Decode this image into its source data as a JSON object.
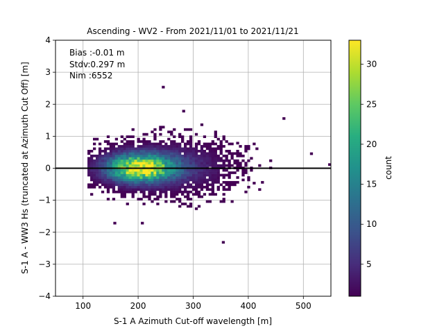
{
  "chart_data": {
    "type": "heatmap",
    "title": "Ascending - WV2 - From 2021/11/01 to 2021/11/21",
    "xlabel": "S-1 A Azimuth Cut-off wavelength [m]",
    "ylabel": "S-1 A - WW3 Hs (truncated at Azimuth Cut Off) [m]",
    "xlim": [
      50,
      550
    ],
    "ylim": [
      -4,
      4
    ],
    "xticks": [
      100,
      200,
      300,
      400,
      500
    ],
    "yticks": [
      -4,
      -3,
      -2,
      -1,
      0,
      1,
      2,
      3,
      4
    ],
    "grid": true,
    "reference_line_y": 0,
    "annotations": [
      "Bias :-0.01 m",
      "Stdv:0.297 m",
      "Nim :6552"
    ],
    "colorbar": {
      "label": "count",
      "colormap": "viridis",
      "range": [
        1,
        33
      ],
      "ticks": [
        5,
        10,
        15,
        20,
        25,
        30
      ]
    },
    "density_clusters": [
      {
        "x_center": 200,
        "y_center": -0.02,
        "x_spread": 42,
        "y_spread": 0.3,
        "peak_count": 33
      },
      {
        "x_center": 275,
        "y_center": 0.0,
        "x_spread": 55,
        "y_spread": 0.45,
        "peak_count": 5
      }
    ],
    "outliers": [
      {
        "x": 243,
        "y": 2.5
      },
      {
        "x": 280,
        "y": 1.75
      },
      {
        "x": 352,
        "y": -2.35
      },
      {
        "x": 205,
        "y": -1.75
      },
      {
        "x": 462,
        "y": 1.52
      },
      {
        "x": 512,
        "y": 0.42
      },
      {
        "x": 545,
        "y": 0.08
      },
      {
        "x": 155,
        "y": -1.75
      },
      {
        "x": 408,
        "y": -0.5
      },
      {
        "x": 378,
        "y": 0.75
      }
    ]
  }
}
